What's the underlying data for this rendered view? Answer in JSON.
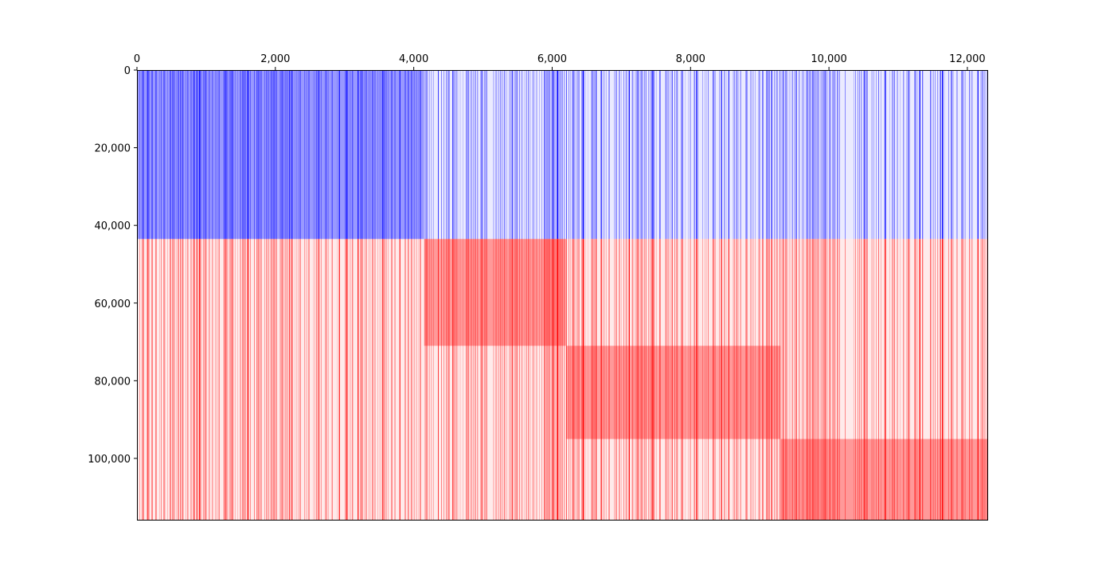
{
  "chart_data": {
    "type": "heatmap",
    "title": "",
    "xlabel": "",
    "ylabel": "",
    "x_axis_position": "top",
    "y_axis_inverted": true,
    "xlim": [
      0,
      12300
    ],
    "ylim": [
      116000,
      0
    ],
    "x_ticks": [
      0,
      2000,
      4000,
      6000,
      8000,
      10000,
      12000
    ],
    "x_tick_labels": [
      "0",
      "2,000",
      "4,000",
      "6,000",
      "8,000",
      "10,000",
      "12,000"
    ],
    "y_ticks": [
      0,
      20000,
      40000,
      60000,
      80000,
      100000
    ],
    "y_tick_labels": [
      "0",
      "20,000",
      "40,000",
      "60,000",
      "80,000",
      "100,000"
    ],
    "grid": false,
    "legend": "none",
    "description_of_encoding": "",
    "row_groups": [
      {
        "y_start": 0,
        "y_end": 43500,
        "color": "#0000ff"
      },
      {
        "y_start": 43500,
        "y_end": 116000,
        "color": "#ff0000"
      }
    ],
    "dense_blocks": [
      {
        "x_start": 0,
        "x_end": 4150,
        "y_start": 0,
        "y_end": 43500,
        "color": "#0000ff"
      },
      {
        "x_start": 4150,
        "x_end": 6200,
        "y_start": 43500,
        "y_end": 71000,
        "color": "#ff0000"
      },
      {
        "x_start": 6200,
        "x_end": 9300,
        "y_start": 71000,
        "y_end": 95000,
        "color": "#ff0000"
      },
      {
        "x_start": 9300,
        "x_end": 12300,
        "y_start": 95000,
        "y_end": 116000,
        "color": "#ff0000"
      }
    ],
    "colors": {
      "group_a": "#0000ff",
      "group_b": "#ff0000",
      "background": "#ffffff",
      "frame": "#000000"
    }
  }
}
